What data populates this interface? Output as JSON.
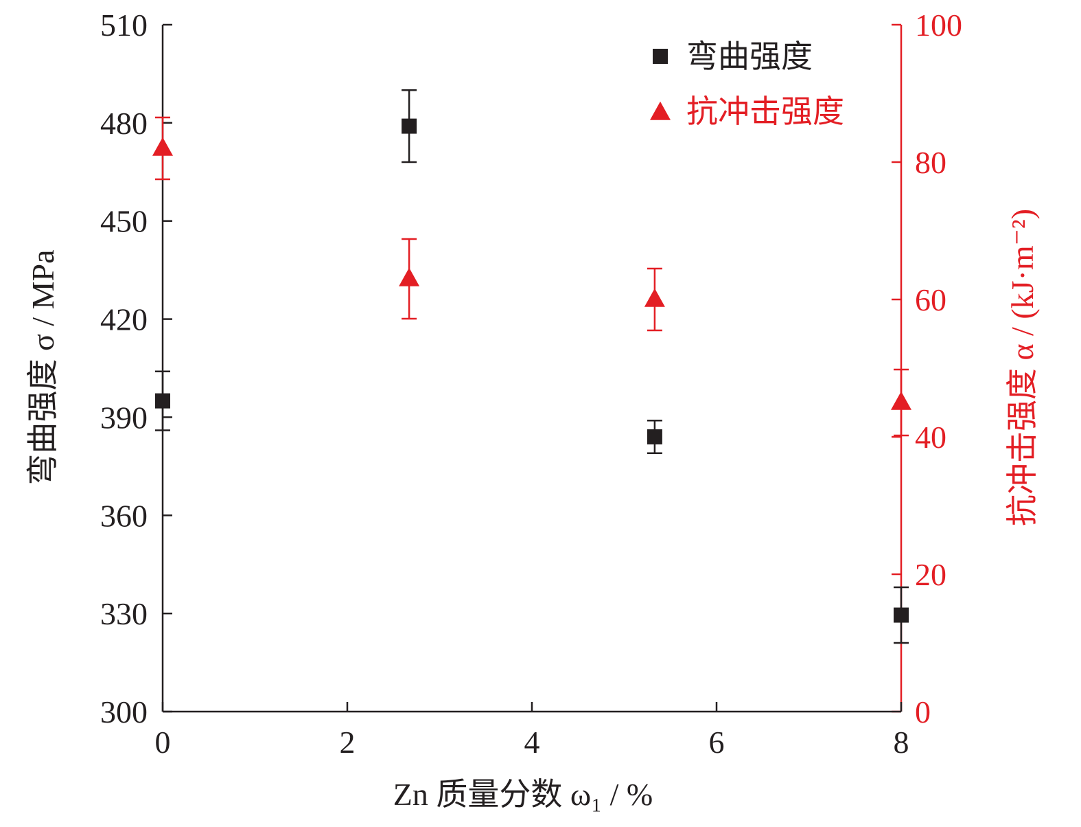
{
  "chart_data": {
    "type": "scatter",
    "x_axis": {
      "label": "Zn 质量分数 ω₁ / %",
      "range": [
        0,
        8
      ],
      "ticks": [
        0,
        2,
        4,
        6,
        8
      ]
    },
    "y_axis_left": {
      "label": "弯曲强度 σ / MPa",
      "range": [
        300,
        510
      ],
      "ticks": [
        300,
        330,
        360,
        390,
        420,
        450,
        480,
        510
      ],
      "color": "#231f20"
    },
    "y_axis_right": {
      "label": "抗冲击强度 α / (kJ·m⁻²)",
      "range": [
        0,
        100
      ],
      "ticks": [
        0,
        20,
        40,
        60,
        80,
        100
      ],
      "color": "#e31e24"
    },
    "legend_position": "top-right",
    "series": [
      {
        "name": "弯曲强度",
        "axis": "left",
        "marker": "square",
        "color": "#231f20",
        "points": [
          {
            "x": 0,
            "y": 395,
            "err": 9
          },
          {
            "x": 2.67,
            "y": 479,
            "err": 11
          },
          {
            "x": 5.33,
            "y": 384,
            "err": 5
          },
          {
            "x": 8,
            "y": 329.5,
            "err": 8.5
          }
        ]
      },
      {
        "name": "抗冲击强度",
        "axis": "right",
        "marker": "triangle",
        "color": "#e31e24",
        "points": [
          {
            "x": 0,
            "y": 82,
            "err": 4.5
          },
          {
            "x": 2.67,
            "y": 63,
            "err": 5.8
          },
          {
            "x": 5.33,
            "y": 60,
            "err": 4.5
          },
          {
            "x": 8,
            "y": 45,
            "err": 4.8
          }
        ]
      }
    ]
  }
}
